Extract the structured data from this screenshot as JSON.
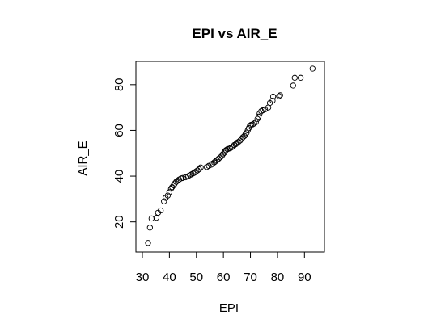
{
  "chart_data": {
    "type": "scatter",
    "title": "EPI vs AIR_E",
    "xlabel": "EPI",
    "ylabel": "AIR_E",
    "xlim": [
      30,
      95
    ],
    "ylim": [
      10,
      87
    ],
    "xticks": [
      30,
      40,
      50,
      60,
      70,
      80,
      90
    ],
    "yticks": [
      20,
      40,
      60,
      80
    ],
    "grid": false,
    "legend": "none",
    "points": [
      [
        32.1,
        10.8
      ],
      [
        32.8,
        17.5
      ],
      [
        33.4,
        21.5
      ],
      [
        35.2,
        21.8
      ],
      [
        35.8,
        24.0
      ],
      [
        36.8,
        25.0
      ],
      [
        38.0,
        29.0
      ],
      [
        38.6,
        30.5
      ],
      [
        39.4,
        31.5
      ],
      [
        40.0,
        33.0
      ],
      [
        40.6,
        34.5
      ],
      [
        41.0,
        35.2
      ],
      [
        41.6,
        36.0
      ],
      [
        42.0,
        36.8
      ],
      [
        42.5,
        37.5
      ],
      [
        43.0,
        38.0
      ],
      [
        43.6,
        38.5
      ],
      [
        44.3,
        39.0
      ],
      [
        45.0,
        39.2
      ],
      [
        46.0,
        39.5
      ],
      [
        47.0,
        40.0
      ],
      [
        47.6,
        40.5
      ],
      [
        48.2,
        40.8
      ],
      [
        48.8,
        41.2
      ],
      [
        49.3,
        41.5
      ],
      [
        49.8,
        42.0
      ],
      [
        50.4,
        42.5
      ],
      [
        51.0,
        43.0
      ],
      [
        51.6,
        43.8
      ],
      [
        53.8,
        44.0
      ],
      [
        54.6,
        44.5
      ],
      [
        55.5,
        45.0
      ],
      [
        56.0,
        45.5
      ],
      [
        56.6,
        46.0
      ],
      [
        57.0,
        46.4
      ],
      [
        57.6,
        47.0
      ],
      [
        58.2,
        47.6
      ],
      [
        58.8,
        48.2
      ],
      [
        59.4,
        48.8
      ],
      [
        59.8,
        49.6
      ],
      [
        60.3,
        50.2
      ],
      [
        60.6,
        51.0
      ],
      [
        61.0,
        51.4
      ],
      [
        61.5,
        51.8
      ],
      [
        62.0,
        52.0
      ],
      [
        62.5,
        52.2
      ],
      [
        63.0,
        52.6
      ],
      [
        63.6,
        53.0
      ],
      [
        64.0,
        53.6
      ],
      [
        64.6,
        54.0
      ],
      [
        65.0,
        54.6
      ],
      [
        65.6,
        55.0
      ],
      [
        66.2,
        55.6
      ],
      [
        66.8,
        56.4
      ],
      [
        67.2,
        57.0
      ],
      [
        67.8,
        57.6
      ],
      [
        68.2,
        58.4
      ],
      [
        68.6,
        59.0
      ],
      [
        69.0,
        60.0
      ],
      [
        69.4,
        61.0
      ],
      [
        69.8,
        62.0
      ],
      [
        70.2,
        62.4
      ],
      [
        70.8,
        62.6
      ],
      [
        71.4,
        63.0
      ],
      [
        72.0,
        63.6
      ],
      [
        72.6,
        65.0
      ],
      [
        73.0,
        66.0
      ],
      [
        73.4,
        67.4
      ],
      [
        74.0,
        68.4
      ],
      [
        74.6,
        68.8
      ],
      [
        75.4,
        69.2
      ],
      [
        76.6,
        70.0
      ],
      [
        77.2,
        72.0
      ],
      [
        78.2,
        73.0
      ],
      [
        78.4,
        74.8
      ],
      [
        80.6,
        75.0
      ],
      [
        81.0,
        75.4
      ],
      [
        85.8,
        79.6
      ],
      [
        86.4,
        83.0
      ],
      [
        88.6,
        83.0
      ],
      [
        93.0,
        87.0
      ]
    ]
  }
}
